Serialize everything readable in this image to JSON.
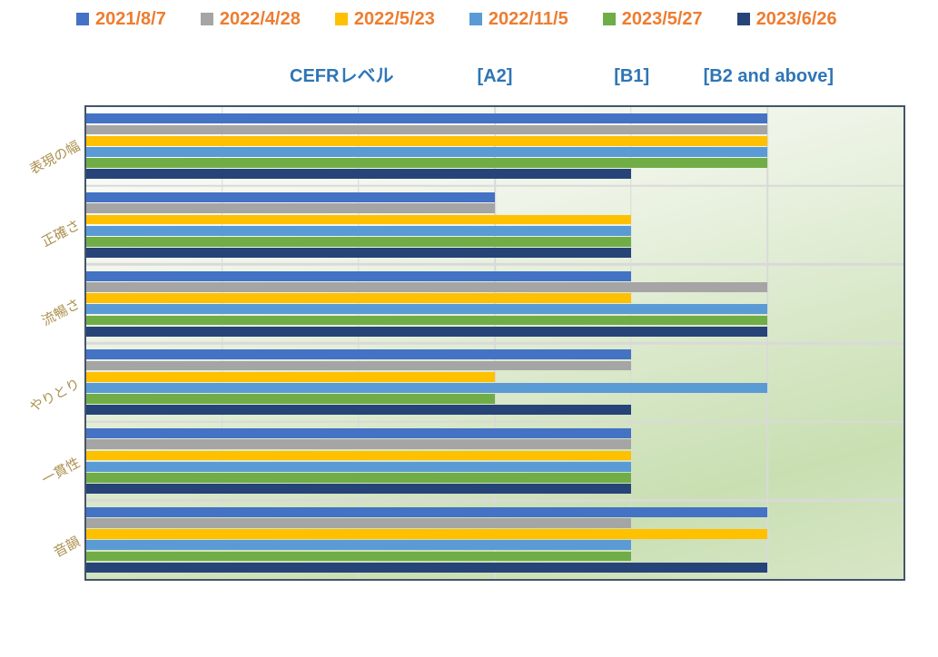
{
  "page": {
    "background": "#ffffff"
  },
  "chart_data": {
    "type": "bar",
    "orientation": "horizontal",
    "title": "",
    "xlabel": "",
    "ylabel": "",
    "xlim": [
      0,
      6
    ],
    "grid": {
      "vertical_step": 1,
      "horizontal_at_category_boundaries": true,
      "color": "#D9D9D9"
    },
    "legend_position": "top",
    "categories": [
      "表現の幅",
      "正確さ",
      "流暢さ",
      "やりとり",
      "一貫性",
      "音韻"
    ],
    "series": [
      {
        "name": "2021/8/7",
        "color": "#4472C4",
        "values": [
          5,
          3,
          4,
          4,
          4,
          5
        ]
      },
      {
        "name": "2022/4/28",
        "color": "#A5A5A5",
        "values": [
          5,
          3,
          5,
          4,
          4,
          4
        ]
      },
      {
        "name": "2022/5/23",
        "color": "#FFC000",
        "values": [
          5,
          4,
          4,
          3,
          4,
          5
        ]
      },
      {
        "name": "2022/11/5",
        "color": "#5B9BD5",
        "values": [
          5,
          4,
          5,
          5,
          4,
          4
        ]
      },
      {
        "name": "2023/5/27",
        "color": "#70AD47",
        "values": [
          5,
          4,
          5,
          3,
          4,
          4
        ]
      },
      {
        "name": "2023/6/26",
        "color": "#264478",
        "values": [
          4,
          4,
          5,
          4,
          4,
          5
        ]
      }
    ],
    "axis_annotations": [
      {
        "label": "CEFRレベル",
        "x": 1.88
      },
      {
        "label": "[A2]",
        "x": 3
      },
      {
        "label": "[B1]",
        "x": 4
      },
      {
        "label": "[B2 and above]",
        "x": 5
      }
    ],
    "colors": {
      "legend_text": "#ED7D31",
      "annotation_text": "#2E75B6",
      "category_label_text": "#AC9150",
      "plot_border": "#44546A",
      "gridline": "#D9D9D9",
      "plot_bg_top": "#FDFDFC",
      "plot_bg_bottom": "#C9DFB2"
    }
  }
}
